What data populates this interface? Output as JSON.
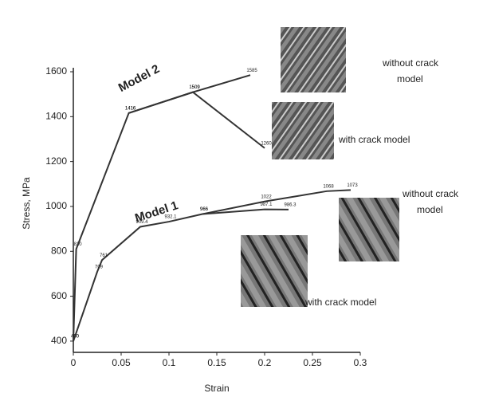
{
  "chart_data": {
    "type": "line",
    "xlabel": "Strain",
    "ylabel": "Stress, MPa",
    "xlim": [
      0,
      0.3
    ],
    "xticks": [
      0,
      0.05,
      0.1,
      0.15,
      0.2,
      0.25,
      0.3
    ],
    "ylim": [
      350,
      1600
    ],
    "yticks": [
      400,
      600,
      800,
      1000,
      1200,
      1400,
      1600
    ],
    "series": [
      {
        "name": "Model 2 without crack model",
        "color": "#333333",
        "x": [
          0,
          0.003,
          0.058,
          0.125,
          0.185
        ],
        "values": [
          400,
          810,
          1416,
          1509,
          1585
        ]
      },
      {
        "name": "Model 2 with crack model",
        "color": "#333333",
        "x": [
          0.058,
          0.125,
          0.2
        ],
        "values": [
          1416,
          1509,
          1260
        ]
      },
      {
        "name": "Model 1 without crack model",
        "color": "#333333",
        "x": [
          0,
          0.025,
          0.03,
          0.07,
          0.1,
          0.135,
          0.2,
          0.265,
          0.29
        ],
        "values": [
          400,
          709,
          761,
          909.4,
          932.1,
          966,
          1022,
          1068,
          1073
        ]
      },
      {
        "name": "Model 1 with crack model",
        "color": "#333333",
        "x": [
          0.135,
          0.2,
          0.225
        ],
        "values": [
          966,
          987.1,
          986.3
        ]
      }
    ],
    "annotations": [
      "Model 2",
      "Model 1",
      "without crack model",
      "with crack model",
      "without crack model",
      "with crack model"
    ]
  }
}
